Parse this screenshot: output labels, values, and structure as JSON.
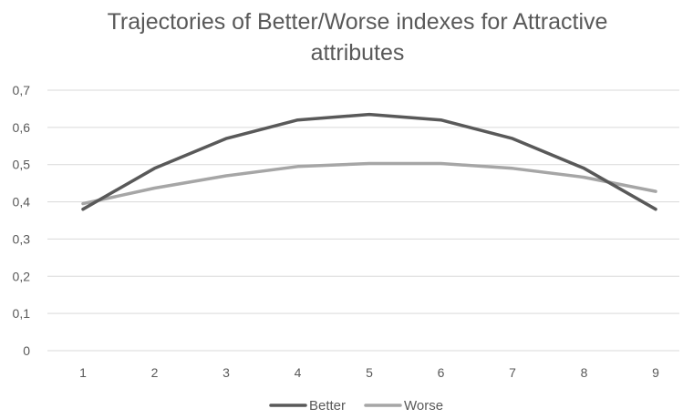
{
  "chart_data": {
    "type": "line",
    "title_lines": [
      "Trajectories of Better/Worse indexes for Attractive",
      "attributes"
    ],
    "categories": [
      "1",
      "2",
      "3",
      "4",
      "5",
      "6",
      "7",
      "8",
      "9"
    ],
    "series": [
      {
        "name": "Better",
        "color": "#595959",
        "values": [
          0.38,
          0.49,
          0.57,
          0.62,
          0.635,
          0.62,
          0.57,
          0.49,
          0.38
        ]
      },
      {
        "name": "Worse",
        "color": "#a6a6a6",
        "values": [
          0.395,
          0.437,
          0.47,
          0.495,
          0.503,
          0.503,
          0.49,
          0.466,
          0.428
        ]
      }
    ],
    "y_ticks": [
      "0",
      "0,1",
      "0,2",
      "0,3",
      "0,4",
      "0,5",
      "0,6",
      "0,7"
    ],
    "ylim": [
      0,
      0.7
    ],
    "grid": true,
    "legend_position": "bottom"
  }
}
